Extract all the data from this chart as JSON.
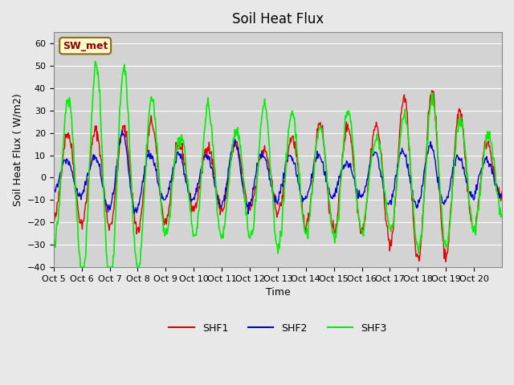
{
  "title": "Soil Heat Flux",
  "ylabel": "Soil Heat Flux ( W/m2)",
  "xlabel": "Time",
  "annotation": "SW_met",
  "ylim": [
    -40,
    65
  ],
  "background_color": "#e8e8e8",
  "plot_bg_color": "#d3d3d3",
  "grid_color": "#ffffff",
  "shf1_color": "#dd0000",
  "shf2_color": "#0000cc",
  "shf3_color": "#00ee00",
  "xtick_labels": [
    "Oct 5",
    "Oct 6",
    "Oct 7",
    "Oct 8",
    "Oct 9",
    "Oct 10",
    "Oct 11",
    "Oct 12",
    "Oct 13",
    "Oct 14",
    "Oct 15",
    "Oct 16",
    "Oct 17",
    "Oct 18",
    "Oct 19",
    "Oct 20"
  ],
  "ytick_values": [
    -40,
    -30,
    -20,
    -10,
    0,
    10,
    20,
    30,
    40,
    50,
    60
  ],
  "n_days": 16,
  "day_amps1": [
    20,
    21,
    22,
    25,
    14,
    14,
    15,
    12,
    18,
    25,
    23,
    23,
    36,
    39,
    30,
    16
  ],
  "day_amps2": [
    8,
    9,
    20,
    10,
    11,
    10,
    16,
    10,
    10,
    10,
    6,
    12,
    12,
    14,
    9,
    8
  ],
  "day_amps3": [
    35,
    51,
    49,
    35,
    17,
    33,
    20,
    33,
    29,
    21,
    31,
    17,
    28,
    36,
    26,
    20
  ],
  "random_seed": 42,
  "pts_per_day": 48,
  "legend_labels": [
    "SHF1",
    "SHF2",
    "SHF3"
  ]
}
